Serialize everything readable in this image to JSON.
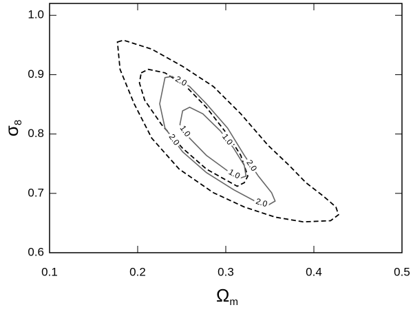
{
  "chart_data": {
    "type": "contour",
    "xlabel": "Ω",
    "xlabel_sub": "m",
    "ylabel": "σ",
    "ylabel_sub": "8",
    "xlim": [
      0.1,
      0.5
    ],
    "xticks": [
      0.1,
      0.2,
      0.3,
      0.4,
      0.5
    ],
    "ylim": [
      0.6,
      1.02
    ],
    "yticks": [
      0.6,
      0.7,
      0.8,
      0.9,
      {
        "value": 1,
        "label": "1.0"
      }
    ],
    "series": [
      {
        "style": "dashed",
        "color": "#000000",
        "x": [
          0.177,
          0.184,
          0.216,
          0.251,
          0.286,
          0.317,
          0.348,
          0.372,
          0.391,
          0.411,
          0.425,
          0.428,
          0.419,
          0.388,
          0.356,
          0.321,
          0.286,
          0.247,
          0.216,
          0.196,
          0.18
        ],
        "y": [
          0.955,
          0.958,
          0.943,
          0.914,
          0.88,
          0.834,
          0.781,
          0.747,
          0.718,
          0.695,
          0.677,
          0.664,
          0.654,
          0.652,
          0.66,
          0.677,
          0.701,
          0.741,
          0.793,
          0.851,
          0.909
        ]
      },
      {
        "style": "dashed",
        "color": "#000000",
        "x": [
          0.204,
          0.212,
          0.231,
          0.255,
          0.278,
          0.302,
          0.317,
          0.325,
          0.321,
          0.313,
          0.302,
          0.278,
          0.251,
          0.227,
          0.208,
          0.202
        ],
        "y": [
          0.903,
          0.909,
          0.903,
          0.88,
          0.845,
          0.799,
          0.764,
          0.729,
          0.718,
          0.712,
          0.721,
          0.741,
          0.776,
          0.816,
          0.857,
          0.886
        ]
      },
      {
        "style": "solid",
        "color": "#666666",
        "label": "2.0",
        "x": [
          0.231,
          0.239,
          0.259,
          0.278,
          0.302,
          0.321,
          0.337,
          0.352,
          0.356,
          0.348,
          0.333,
          0.309,
          0.278,
          0.251,
          0.231,
          0.225
        ],
        "y": [
          0.895,
          0.897,
          0.88,
          0.851,
          0.81,
          0.764,
          0.729,
          0.701,
          0.687,
          0.68,
          0.687,
          0.706,
          0.735,
          0.77,
          0.81,
          0.851
        ]
      },
      {
        "style": "solid",
        "color": "#666666",
        "label": "1.0",
        "x": [
          0.251,
          0.259,
          0.274,
          0.294,
          0.309,
          0.321,
          0.323,
          0.317,
          0.302,
          0.278,
          0.259,
          0.248
        ],
        "y": [
          0.839,
          0.845,
          0.834,
          0.805,
          0.776,
          0.747,
          0.729,
          0.726,
          0.738,
          0.764,
          0.793,
          0.816
        ]
      }
    ]
  }
}
